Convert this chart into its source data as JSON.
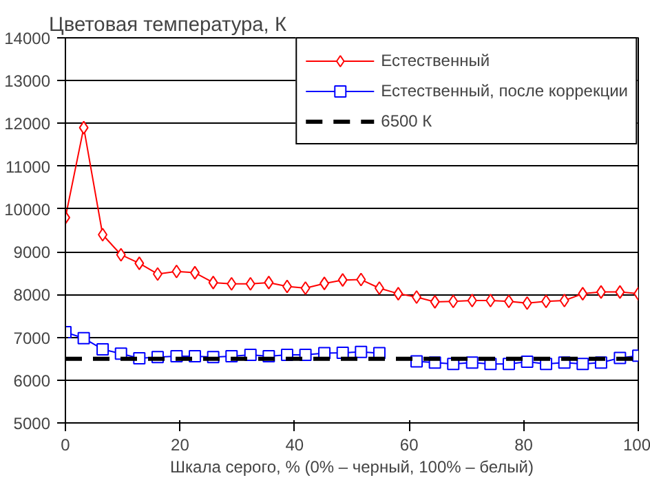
{
  "chart_data": {
    "type": "line",
    "ylabel": "Цветовая температура, К",
    "xlabel": "Шкала серого, % (0% – черный, 100% – белый)",
    "x": [
      0,
      3.2,
      6.5,
      9.7,
      12.9,
      16.1,
      19.4,
      22.6,
      25.8,
      29.0,
      32.3,
      35.5,
      38.7,
      41.9,
      45.2,
      48.4,
      51.6,
      54.8,
      58.1,
      61.3,
      64.5,
      67.7,
      71.0,
      74.2,
      77.4,
      80.6,
      83.9,
      87.1,
      90.3,
      93.5,
      96.8,
      100
    ],
    "series": [
      {
        "name": "Естественный",
        "color": "#ff0000",
        "marker": "diamond",
        "line_style": "solid",
        "values": [
          9800,
          11900,
          9400,
          8930,
          8730,
          8480,
          8540,
          8510,
          8280,
          8250,
          8250,
          8280,
          8190,
          8150,
          8260,
          8340,
          8350,
          8150,
          8020,
          7940,
          7830,
          7840,
          7860,
          7860,
          7840,
          7800,
          7840,
          7860,
          8020,
          8060,
          8060,
          8020
        ]
      },
      {
        "name": "Естественный, после коррекции",
        "color": "#0000ff",
        "marker": "square",
        "line_style": "solid",
        "values": [
          7120,
          6980,
          6720,
          6620,
          6510,
          6540,
          6560,
          6560,
          6540,
          6560,
          6590,
          6560,
          6590,
          6590,
          6630,
          6640,
          6660,
          6630,
          null,
          6440,
          6410,
          6380,
          6410,
          6380,
          6380,
          6430,
          6380,
          6410,
          6380,
          6410,
          6520,
          6570
        ]
      },
      {
        "name": "6500 К",
        "color": "#000000",
        "marker": "none",
        "line_style": "dashed",
        "x": [
          0,
          100
        ],
        "values": [
          6500,
          6500
        ]
      }
    ],
    "xlim": [
      0,
      100
    ],
    "xticks": [
      0,
      20,
      40,
      60,
      80,
      100
    ],
    "ylim": [
      5000,
      14000
    ],
    "yticks": [
      5000,
      6000,
      7000,
      8000,
      9000,
      10000,
      11000,
      12000,
      13000,
      14000
    ],
    "grid": "y",
    "legend": "top right"
  }
}
